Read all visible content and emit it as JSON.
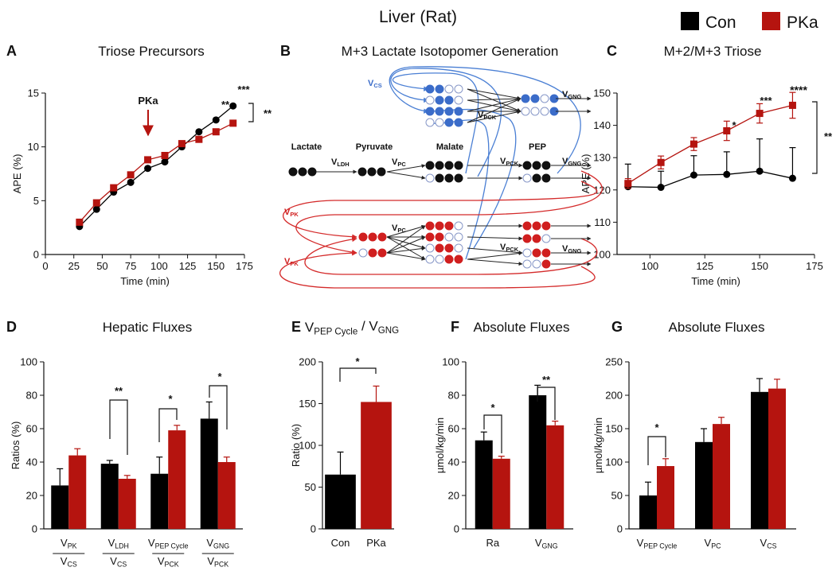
{
  "title": "Liver (Rat)",
  "chart_data": [
    {
      "panel": "A",
      "type": "line",
      "title": "Triose Precursors",
      "xlabel": "Time (min)",
      "ylabel": "APE (%)",
      "xlim": [
        0,
        175
      ],
      "xticks": [
        0,
        25,
        50,
        75,
        100,
        125,
        150,
        175
      ],
      "ylim": [
        0,
        15
      ],
      "yticks": [
        0,
        5,
        10,
        15
      ],
      "series": [
        {
          "name": "Con",
          "color": "#000000",
          "marker": "circle",
          "x": [
            30,
            45,
            60,
            75,
            90,
            105,
            120,
            135,
            150,
            165
          ],
          "values": [
            2.6,
            4.2,
            5.8,
            6.7,
            8.0,
            8.6,
            10.0,
            11.4,
            12.5,
            13.8
          ]
        },
        {
          "name": "PKa",
          "color": "#b5140f",
          "marker": "square",
          "x": [
            30,
            45,
            60,
            75,
            90,
            105,
            120,
            135,
            150,
            165
          ],
          "values": [
            3.0,
            4.8,
            6.2,
            7.4,
            8.8,
            9.2,
            10.3,
            10.7,
            11.4,
            12.2
          ]
        }
      ],
      "annotations": [
        "PKa",
        "**",
        "***",
        "**"
      ]
    },
    {
      "panel": "C",
      "type": "line",
      "title": "M+2/M+3 Triose",
      "xlabel": "Time (min)",
      "ylabel": "APE (%)",
      "xlim": [
        85,
        175
      ],
      "xticks": [
        100,
        125,
        150,
        175
      ],
      "ylim": [
        100,
        150
      ],
      "yticks": [
        100,
        110,
        120,
        130,
        140,
        150
      ],
      "series": [
        {
          "color": "#000000",
          "marker": "circle",
          "x": [
            90,
            105,
            120,
            135,
            150,
            165
          ],
          "values": [
            121,
            120.8,
            124.6,
            124.8,
            125.8,
            123.6
          ],
          "errors": [
            7,
            5,
            6,
            7,
            10,
            9.5
          ]
        },
        {
          "color": "#b5140f",
          "marker": "square",
          "x": [
            90,
            105,
            120,
            135,
            150,
            165
          ],
          "values": [
            122,
            128.5,
            134.2,
            138.3,
            143.7,
            146.2
          ],
          "errors": [
            1.5,
            2,
            2,
            3,
            3,
            4
          ]
        }
      ],
      "annotations": [
        "*",
        "***",
        "****",
        "**"
      ]
    },
    {
      "panel": "D",
      "type": "grouped_bar",
      "title": "Hepatic Fluxes",
      "ylabel": "Ratios (%)",
      "categories": [
        {
          "num": [
            "V",
            {
              "sub": "PK"
            }
          ],
          "den": [
            "V",
            {
              "sub": "CS"
            }
          ]
        },
        {
          "num": [
            "V",
            {
              "sub": "LDH"
            }
          ],
          "den": [
            "V",
            {
              "sub": "CS"
            }
          ]
        },
        {
          "num": [
            "V",
            {
              "sub": "PEP Cycle"
            }
          ],
          "den": [
            "V",
            {
              "sub": "PCK"
            }
          ]
        },
        {
          "num": [
            "V",
            {
              "sub": "GNG"
            }
          ],
          "den": [
            "V",
            {
              "sub": "PCK"
            }
          ]
        }
      ],
      "series": [
        {
          "color": "#000000",
          "values": [
            26,
            39,
            33,
            66
          ],
          "errors": [
            10,
            2,
            10,
            10
          ]
        },
        {
          "color": "#b5140f",
          "values": [
            44,
            30,
            59,
            40
          ],
          "errors": [
            4,
            2,
            3,
            3
          ]
        }
      ],
      "ylim": [
        0,
        100
      ],
      "yticks": [
        0,
        20,
        40,
        60,
        80,
        100
      ],
      "annotations": [
        "**",
        "*",
        "*"
      ]
    },
    {
      "panel": "E",
      "type": "bar",
      "title": [
        "V",
        {
          "sub": "PEP Cycle"
        },
        " / V",
        {
          "sub": "GNG"
        }
      ],
      "ylabel": "Ratio (%)",
      "categories": [
        "Con",
        "PKa"
      ],
      "values": [
        65,
        152
      ],
      "errors": [
        27,
        19
      ],
      "colors": [
        "#000000",
        "#b5140f"
      ],
      "ylim": [
        0,
        200
      ],
      "yticks": [
        0,
        50,
        100,
        150,
        200
      ],
      "annotations": [
        "*"
      ]
    },
    {
      "panel": "F",
      "type": "grouped_bar",
      "title": "Absolute Fluxes",
      "ylabel": "µmol/kg/min",
      "categories": [
        "Ra",
        [
          "V",
          {
            "sub": "GNG"
          }
        ]
      ],
      "series": [
        {
          "color": "#000000",
          "values": [
            53,
            80
          ],
          "errors": [
            5,
            6
          ]
        },
        {
          "color": "#b5140f",
          "values": [
            42,
            62
          ],
          "errors": [
            1.5,
            2.5
          ]
        }
      ],
      "ylim": [
        0,
        100
      ],
      "yticks": [
        0,
        20,
        40,
        60,
        80,
        100
      ],
      "annotations": [
        "*",
        "**"
      ]
    },
    {
      "panel": "G",
      "type": "grouped_bar",
      "title": "Absolute Fluxes",
      "ylabel": "µmol/kg/min",
      "categories": [
        [
          "V",
          {
            "sub": "PEP Cycle"
          }
        ],
        [
          "V",
          {
            "sub": "PC"
          }
        ],
        [
          "V",
          {
            "sub": "CS"
          }
        ]
      ],
      "series": [
        {
          "color": "#000000",
          "values": [
            50,
            130,
            205
          ],
          "errors": [
            20,
            20,
            20
          ]
        },
        {
          "color": "#b5140f",
          "values": [
            94,
            157,
            210
          ],
          "errors": [
            11,
            10,
            14
          ]
        }
      ],
      "ylim": [
        0,
        250
      ],
      "yticks": [
        0,
        50,
        100,
        150,
        200,
        250
      ],
      "annotations": [
        "*"
      ]
    }
  ],
  "diagram": {
    "panel": "B",
    "title": "M+3 Lactate Isotopomer Generation",
    "labels": [
      "Lactate",
      "Pyruvate",
      "Malate",
      "PEP"
    ],
    "fluxes": [
      [
        "V",
        {
          "sub": "CS"
        }
      ],
      [
        "V",
        {
          "sub": "GNG"
        }
      ],
      [
        "V",
        {
          "sub": "PCK"
        }
      ],
      [
        "V",
        {
          "sub": "LDH"
        }
      ],
      [
        "V",
        {
          "sub": "PC"
        }
      ],
      [
        "V",
        {
          "sub": "PCK"
        }
      ],
      [
        "V",
        {
          "sub": "GNG"
        }
      ],
      [
        "V",
        {
          "sub": "PK"
        }
      ],
      [
        "V",
        {
          "sub": "PC"
        }
      ],
      [
        "V",
        {
          "sub": "PK"
        }
      ],
      [
        "V",
        {
          "sub": "PCK"
        }
      ],
      [
        "V",
        {
          "sub": "GNG"
        }
      ]
    ]
  }
}
